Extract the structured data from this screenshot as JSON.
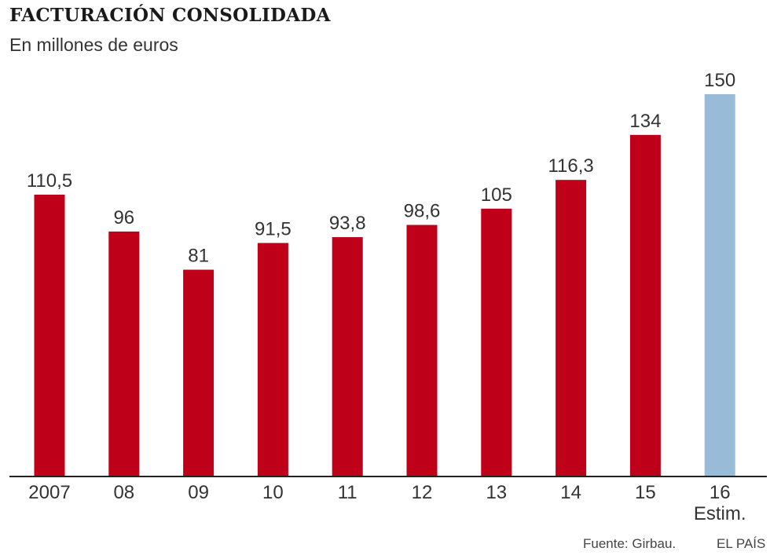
{
  "chart_data": {
    "type": "bar",
    "title": "FACTURACIÓN CONSOLIDADA",
    "subtitle": "En millones de euros",
    "categories": [
      "2007",
      "08",
      "09",
      "10",
      "11",
      "12",
      "13",
      "14",
      "15",
      "16"
    ],
    "category_sublabels": [
      "",
      "",
      "",
      "",
      "",
      "",
      "",
      "",
      "",
      "Estim."
    ],
    "values": [
      110.5,
      96,
      81,
      91.5,
      93.8,
      98.6,
      105,
      116.3,
      134,
      150
    ],
    "value_labels": [
      "110,5",
      "96",
      "81",
      "91,5",
      "93,8",
      "98,6",
      "105",
      "116,3",
      "134",
      "150"
    ],
    "estimated": [
      false,
      false,
      false,
      false,
      false,
      false,
      false,
      false,
      false,
      true
    ],
    "ylim": [
      0,
      150
    ],
    "colors": {
      "actual": "#be0019",
      "estimated": "#98bcd8",
      "axis": "#222222"
    },
    "grid": false
  },
  "footer": {
    "source": "Fuente: Girbau.",
    "brand": "EL PAÍS"
  }
}
